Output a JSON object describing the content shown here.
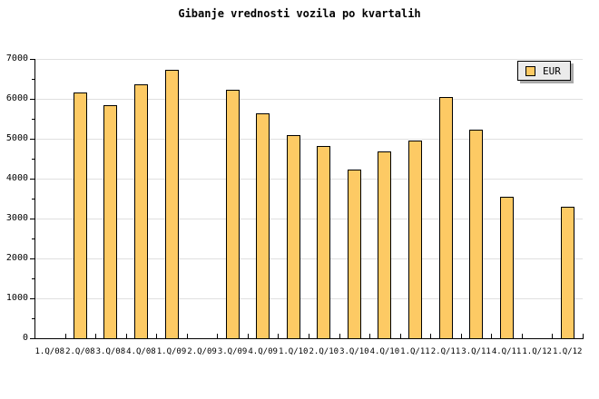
{
  "title": "Gibanje vrednosti vozila po kvartalih",
  "legend": {
    "label": "EUR"
  },
  "colors": {
    "background": "#ffffff",
    "bar_fill": "#fdca64",
    "bar_border": "#000000",
    "gridline": "#e0e0e0",
    "axis": "#000000",
    "text": "#000000",
    "legend_bg": "#ebebeb",
    "legend_border": "#000000",
    "legend_shadow": "#aaaaaa"
  },
  "chart_data": {
    "type": "bar",
    "title": "Gibanje vrednosti vozila po kvartalih",
    "categories": [
      "1.Q/08",
      "2.Q/08",
      "3.Q/08",
      "4.Q/08",
      "1.Q/09",
      "2.Q/09",
      "3.Q/09",
      "4.Q/09",
      "1.Q/10",
      "2.Q/10",
      "3.Q/10",
      "4.Q/10",
      "1.Q/11",
      "2.Q/11",
      "3.Q/11",
      "4.Q/11",
      "1.Q/12",
      "1.Q/12"
    ],
    "series": [
      {
        "name": "EUR",
        "values": [
          null,
          6160,
          5840,
          6370,
          6720,
          null,
          6230,
          5640,
          5090,
          4820,
          4230,
          4680,
          4950,
          6050,
          5230,
          3550,
          null,
          3300
        ]
      }
    ],
    "xlabel": "",
    "ylabel": "",
    "ylim": [
      0,
      7000
    ],
    "ytick_major_interval": 1000,
    "ytick_minor_interval": 500,
    "yticks": [
      0,
      1000,
      2000,
      3000,
      4000,
      5000,
      6000,
      7000
    ],
    "grid": "horizontal-major",
    "legend_position": "top-right"
  }
}
